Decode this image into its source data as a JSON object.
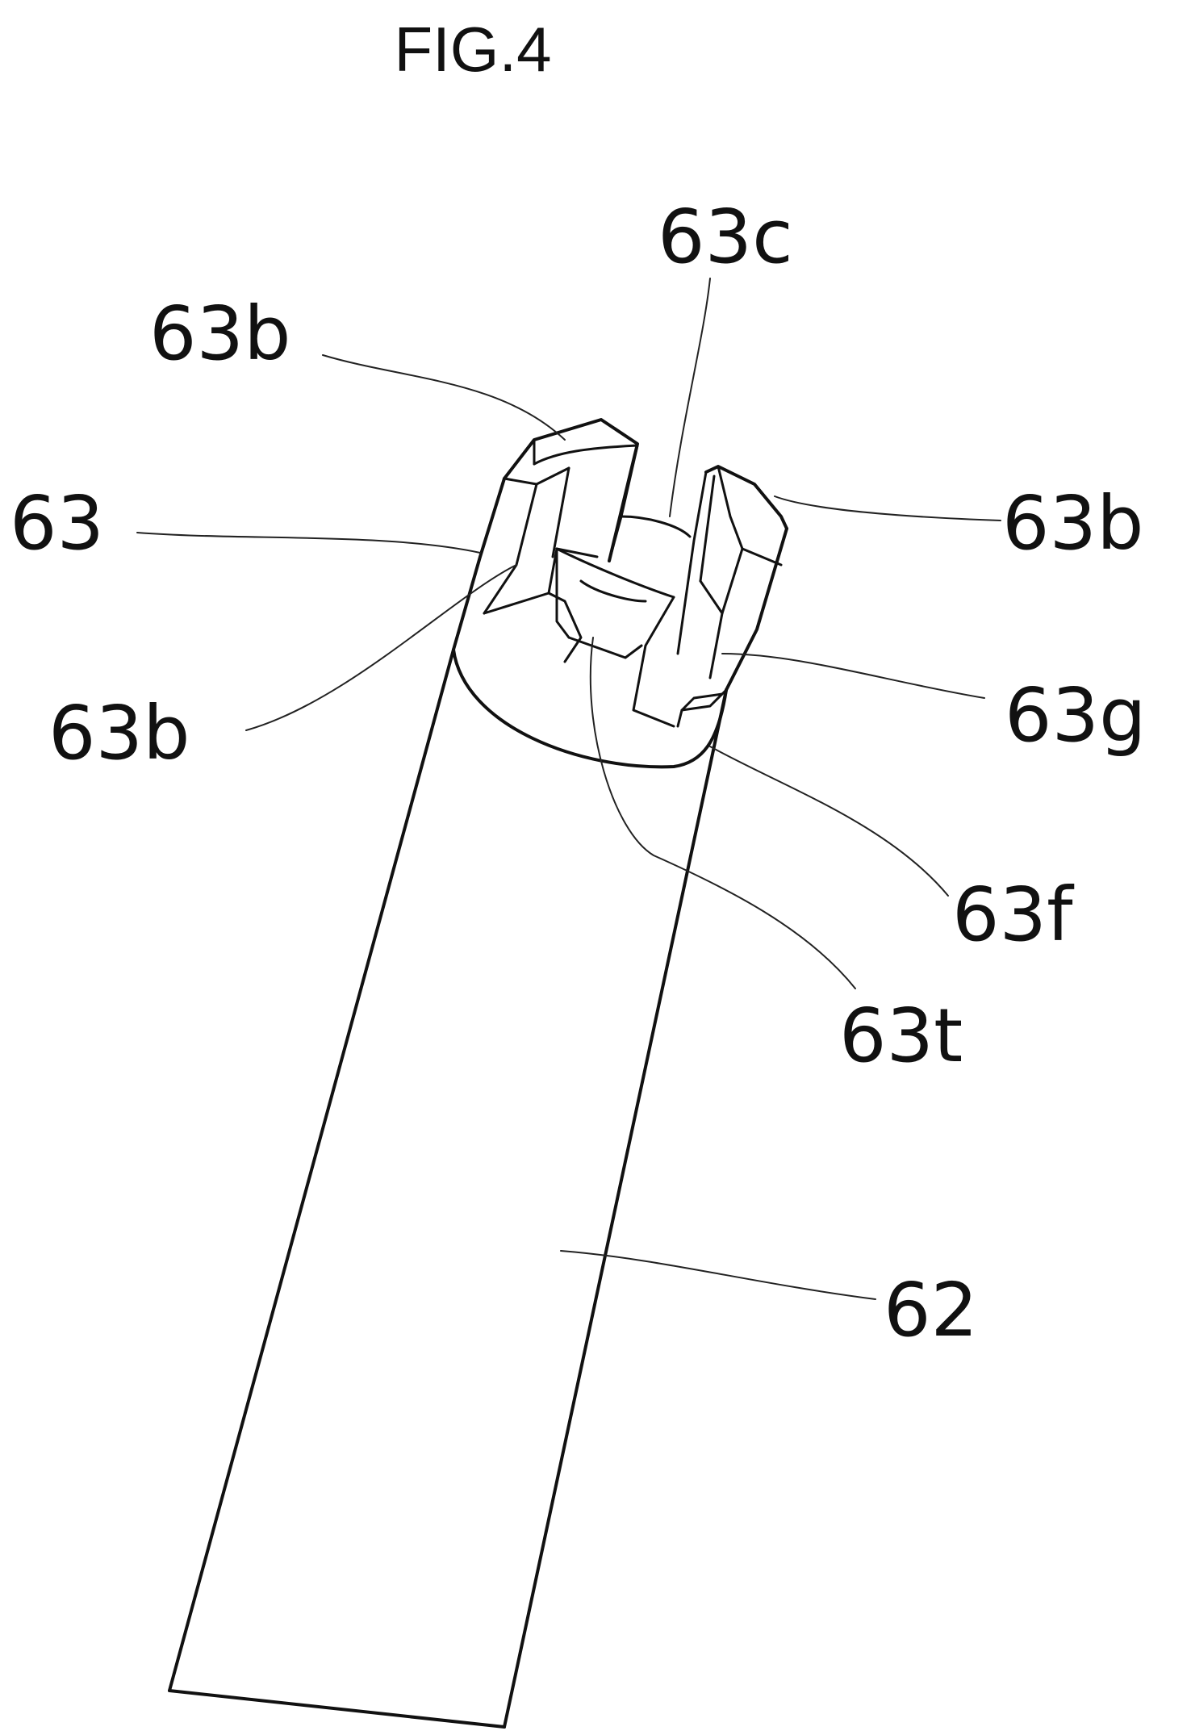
{
  "figure": {
    "title": "FIG.4",
    "labels": {
      "63c": "63c",
      "63b_top_left": "63b",
      "63": "63",
      "63b_right": "63b",
      "63b_left_lower": "63b",
      "63g": "63g",
      "63f": "63f",
      "63t": "63t",
      "62": "62"
    }
  }
}
